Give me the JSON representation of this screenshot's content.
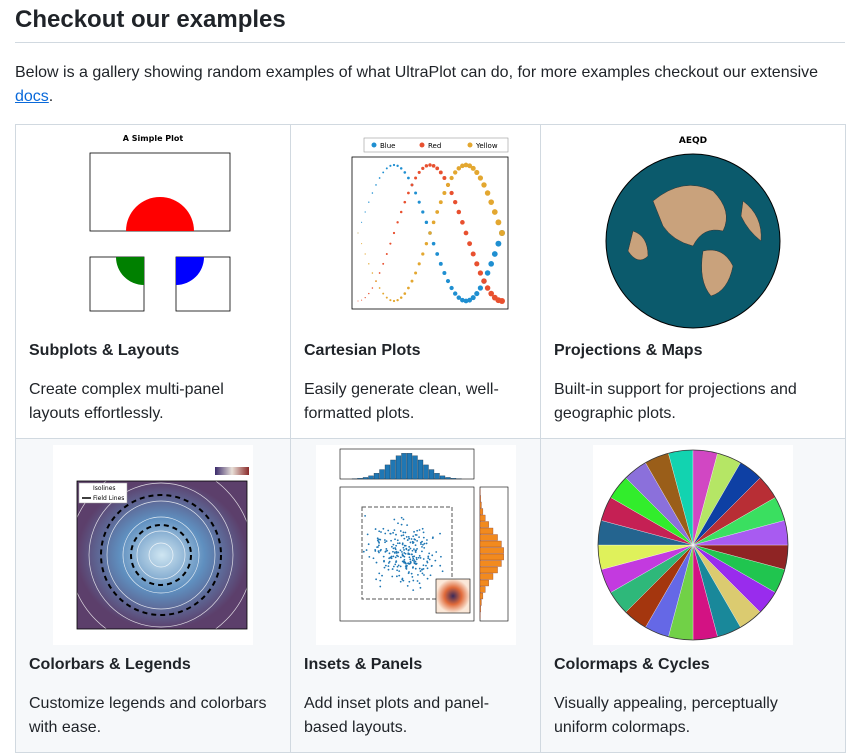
{
  "header": {
    "title": "Checkout our examples"
  },
  "intro": {
    "text": "Below is a gallery showing random examples of what UltraPlot can do, for more examples checkout our extensive",
    "link": "docs",
    "end": "."
  },
  "gallery": [
    {
      "title": "Subplots & Layouts",
      "description": "Create complex multi-panel layouts effortlessly.",
      "image_title": "A Simple Plot"
    },
    {
      "title": "Cartesian Plots",
      "description": "Easily generate clean, well-formatted plots.",
      "legend": [
        "Blue",
        "Red",
        "Yellow"
      ]
    },
    {
      "title": "Projections & Maps",
      "description": "Built-in support for projections and geographic plots.",
      "image_title": "AEQD"
    },
    {
      "title": "Colorbars & Legends",
      "description": "Customize legends and colorbars with ease.",
      "legend": [
        "Isolines",
        "Field Lines"
      ]
    },
    {
      "title": "Insets & Panels",
      "description": "Add inset plots and panel-based layouts."
    },
    {
      "title": "Colormaps & Cycles",
      "description": "Visually appealing, perceptually uniform colormaps."
    }
  ]
}
